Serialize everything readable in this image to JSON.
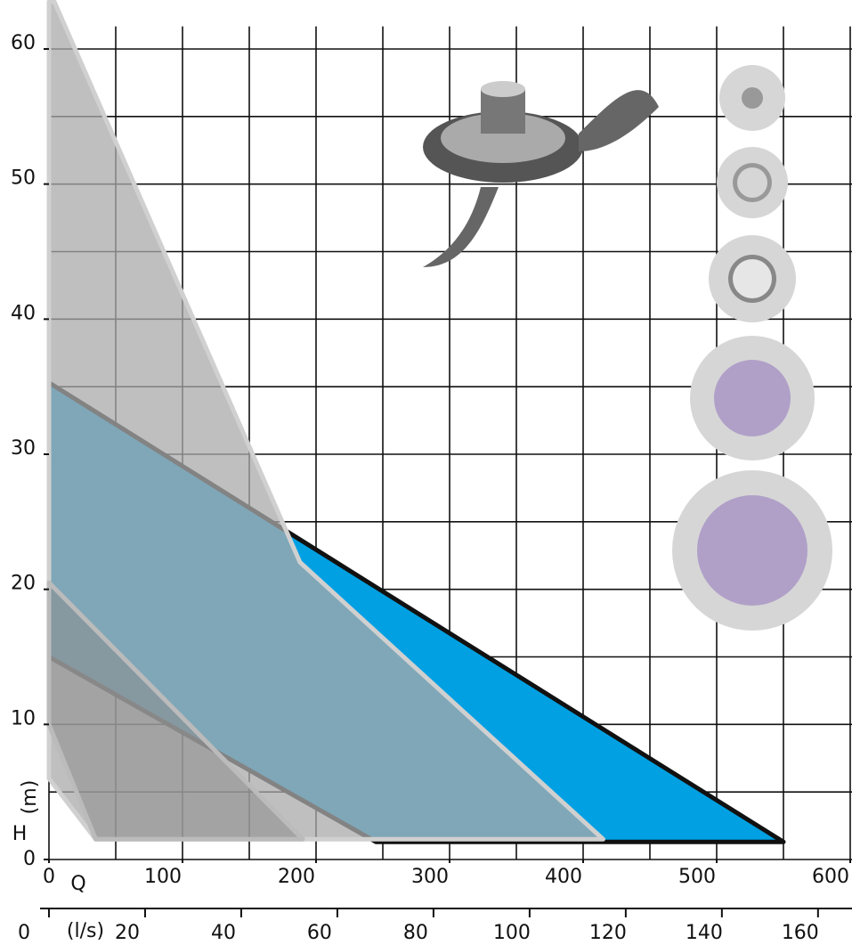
{
  "chart_data": {
    "type": "polygon",
    "xlim": [
      0,
      600
    ],
    "xticks": [
      0,
      100,
      200,
      300,
      400,
      500,
      600
    ],
    "ylim": [
      0,
      62
    ],
    "yticks": [
      0,
      10,
      20,
      30,
      40,
      50,
      60
    ],
    "x2lim": [
      0,
      166.7
    ],
    "x2ticks": [
      0,
      20,
      40,
      60,
      80,
      100,
      120,
      140,
      160
    ],
    "y_label": "H",
    "y_unit": "(m)",
    "x_label": "Q",
    "x2_unit": "(l/s)",
    "grid": {
      "x": 50,
      "y": 5
    },
    "series": [
      {
        "color": "#00a0e3",
        "stroke": "#111",
        "x": [
          0,
          550,
          245,
          0
        ],
        "values": [
          35.3,
          1.3,
          1.3,
          15
        ]
      },
      {
        "color": "rgba(170,170,170,0.75)",
        "stroke": "#d0d0d0",
        "x": [
          0,
          4,
          188,
          415,
          35,
          0
        ],
        "values": [
          63.5,
          63.5,
          22,
          1.5,
          1.5,
          6
        ]
      },
      {
        "color": "rgba(140,140,140,0.55)",
        "stroke": "#bbbbbb",
        "x": [
          0,
          190,
          35,
          0
        ],
        "values": [
          20.5,
          1.5,
          1.5,
          10
        ]
      }
    ]
  }
}
